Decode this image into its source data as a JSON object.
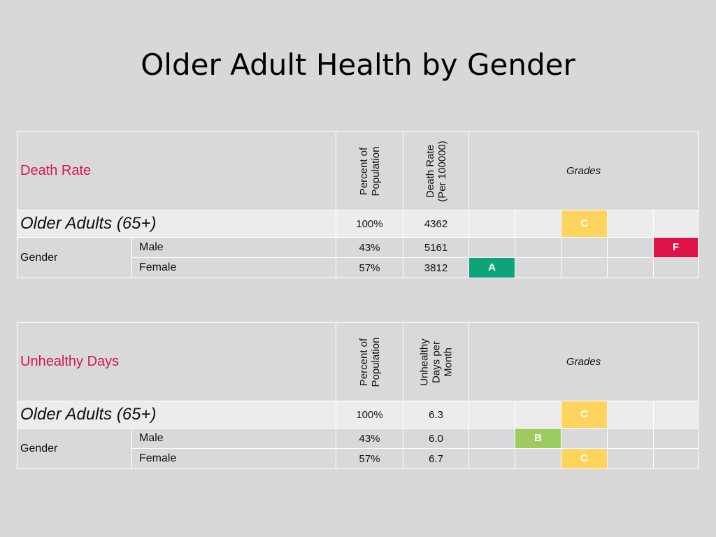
{
  "title": "Older Adult Health by Gender",
  "grade_colors": {
    "A": "#0fa37a",
    "B": "#9ccc60",
    "C": "#fed45f",
    "F": "#de1247"
  },
  "tables": [
    {
      "metric_label": "Death Rate",
      "col_percent": [
        "Percent of",
        "Population"
      ],
      "col_value": [
        "Death Rate",
        "(Per 100000)"
      ],
      "grades_label": "Grades",
      "total": {
        "label": "Older Adults (65+)",
        "percent": "100%",
        "value": "4362",
        "grade": "C",
        "grade_col": 3
      },
      "group_label": "Gender",
      "rows": [
        {
          "label": "Male",
          "percent": "43%",
          "value": "5161",
          "grade": "F",
          "grade_col": 5
        },
        {
          "label": "Female",
          "percent": "57%",
          "value": "3812",
          "grade": "A",
          "grade_col": 1
        }
      ]
    },
    {
      "metric_label": "Unhealthy Days",
      "col_percent": [
        "Percent of",
        "Population"
      ],
      "col_value": [
        "Unhealthy",
        "Days per",
        "Month"
      ],
      "grades_label": "Grades",
      "total": {
        "label": "Older Adults (65+)",
        "percent": "100%",
        "value": "6.3",
        "grade": "C",
        "grade_col": 3
      },
      "group_label": "Gender",
      "rows": [
        {
          "label": "Male",
          "percent": "43%",
          "value": "6.0",
          "grade": "B",
          "grade_col": 2
        },
        {
          "label": "Female",
          "percent": "57%",
          "value": "6.7",
          "grade": "C",
          "grade_col": 3
        }
      ]
    }
  ]
}
